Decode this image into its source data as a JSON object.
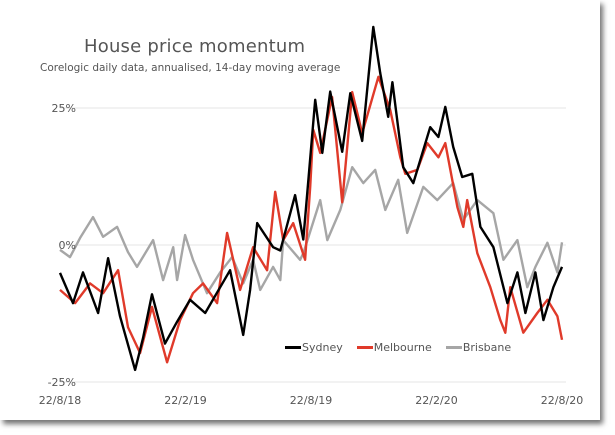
{
  "chart_data": {
    "type": "line",
    "title": "House price momentum",
    "subtitle": "Corelogic daily data, annualised, 14-day moving average",
    "xlabel": "",
    "ylabel": "",
    "x_units": "months since 22/8/18",
    "xlim": [
      0,
      24
    ],
    "ylim": [
      -25,
      25
    ],
    "grid": true,
    "yticks": [
      {
        "v": 25,
        "label": "25%"
      },
      {
        "v": 0,
        "label": "0%"
      },
      {
        "v": -25,
        "label": "-25%"
      }
    ],
    "xticks": [
      {
        "v": 0,
        "label": "22/8/18"
      },
      {
        "v": 6,
        "label": "22/2/19"
      },
      {
        "v": 12,
        "label": "22/8/19"
      },
      {
        "v": 18,
        "label": "22/2/20"
      },
      {
        "v": 24,
        "label": "22/8/20"
      }
    ],
    "legend_position": "bottom-right",
    "series": [
      {
        "name": "Sydney",
        "color": "#000000",
        "x": [
          0,
          0.62,
          1.1,
          1.82,
          2.3,
          2.87,
          3.59,
          3.97,
          4.4,
          5.02,
          5.6,
          6.22,
          6.94,
          7.66,
          8.13,
          8.76,
          9.09,
          9.43,
          10.19,
          10.53,
          11.24,
          11.63,
          12.2,
          12.54,
          12.92,
          13.49,
          13.88,
          14.45,
          14.98,
          15.31,
          15.69,
          15.89,
          16.41,
          16.89,
          17.7,
          18.09,
          18.42,
          18.8,
          19.23,
          19.71,
          20.1,
          20.72,
          21.39,
          21.87,
          22.25,
          22.73,
          23.11,
          23.59,
          24.0
        ],
        "y": [
          -5.1,
          -10.6,
          -5,
          -12.4,
          -2.4,
          -13,
          -22.8,
          -17,
          -9,
          -18,
          -14,
          -10,
          -12.4,
          -7.7,
          -4.6,
          -16.4,
          -8.2,
          4,
          -0.4,
          -1,
          9.1,
          1,
          26.5,
          16.8,
          28,
          17,
          27.7,
          19,
          39.8,
          31.4,
          23.4,
          29.7,
          14.2,
          11.3,
          21.5,
          19.7,
          25.2,
          17.9,
          12.4,
          13,
          3.3,
          -0.4,
          -10.6,
          -5,
          -12.4,
          -5,
          -13.7,
          -7.7,
          -4
        ]
      },
      {
        "name": "Melbourne",
        "color": "#e03a2a",
        "x": [
          0,
          0.72,
          1.44,
          2.06,
          2.78,
          3.25,
          3.83,
          4.4,
          5.12,
          5.74,
          6.36,
          6.84,
          7.51,
          7.99,
          8.61,
          9.23,
          9.9,
          10.29,
          10.67,
          11.15,
          11.72,
          11.96,
          12.11,
          12.44,
          13.01,
          13.49,
          13.97,
          14.45,
          15.22,
          15.79,
          16.27,
          16.51,
          17.08,
          17.56,
          18.09,
          18.42,
          19.0,
          19.28,
          19.47,
          19.95,
          20.57,
          21.05,
          21.29,
          21.53,
          22.15,
          22.82,
          23.3,
          23.78,
          24.0
        ],
        "y": [
          -8.2,
          -10.6,
          -7,
          -8.8,
          -4.6,
          -15,
          -19.7,
          -11.3,
          -21.4,
          -13.7,
          -8.8,
          -7,
          -10.6,
          2.2,
          -8.2,
          -0.4,
          -4.6,
          9.7,
          0.9,
          4,
          -2.7,
          10.6,
          21,
          16.8,
          27,
          7.8,
          27.9,
          20.4,
          30.7,
          24.6,
          16,
          13,
          13.7,
          18.6,
          16,
          18.6,
          6.9,
          3.3,
          8.2,
          -1.5,
          -7.7,
          -13.7,
          -16,
          -7.7,
          -16,
          -12.4,
          -10,
          -13,
          -17.3
        ]
      },
      {
        "name": "Brisbane",
        "color": "#a6a6a6",
        "x": [
          0,
          0.48,
          0.96,
          1.58,
          2.06,
          2.73,
          3.25,
          3.68,
          4.45,
          4.93,
          5.41,
          5.6,
          5.98,
          6.36,
          7.03,
          7.66,
          8.23,
          8.76,
          9.23,
          9.57,
          10.19,
          10.53,
          10.67,
          11.48,
          11.63,
          12.44,
          12.78,
          13.4,
          13.97,
          14.5,
          15.07,
          15.55,
          16.17,
          16.6,
          17.37,
          18.04,
          18.8,
          19.28,
          19.95,
          20.72,
          21.2,
          21.87,
          22.34,
          22.73,
          23.3,
          23.78,
          24.0
        ],
        "y": [
          -0.9,
          -2.2,
          1.3,
          5.1,
          1.5,
          3.3,
          -1.3,
          -4,
          0.9,
          -6.4,
          -0.4,
          -6.4,
          1.8,
          -2.7,
          -8.8,
          -5,
          -2.2,
          -7,
          -2.7,
          -8.2,
          -4,
          -6.4,
          0.9,
          -2.7,
          -1.5,
          8.2,
          0.9,
          6.4,
          14.2,
          11.3,
          13.7,
          6.4,
          11.9,
          2.2,
          10.6,
          8.2,
          11.3,
          4.6,
          8.2,
          5.8,
          -2.7,
          0.9,
          -7.7,
          -4,
          0.4,
          -5,
          0.5
        ]
      }
    ]
  }
}
